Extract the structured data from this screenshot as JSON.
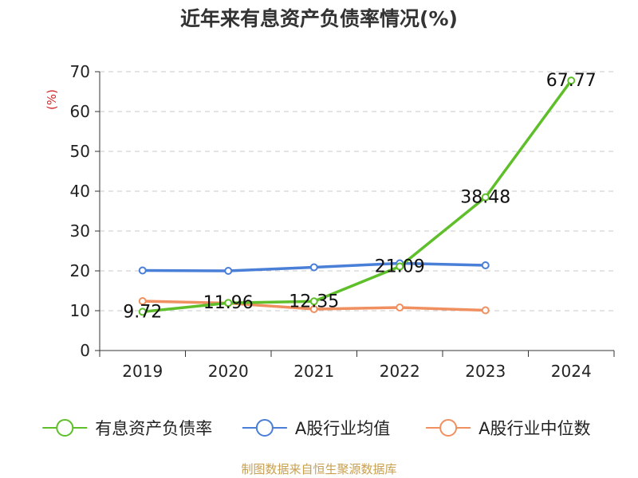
{
  "chart_data": {
    "type": "line",
    "title": "近年来有息资产负债率情况(%)",
    "ylabel": "(%)",
    "xlabel": "",
    "categories": [
      "2019",
      "2020",
      "2021",
      "2022",
      "2023",
      "2024"
    ],
    "ylim": [
      0,
      70
    ],
    "yticks": [
      0,
      10,
      20,
      30,
      40,
      50,
      60,
      70
    ],
    "grid": true,
    "legend_position": "bottom",
    "series": [
      {
        "name": "有息资产负债率",
        "color": "#5fbf2a",
        "values": [
          9.72,
          11.96,
          12.35,
          21.09,
          38.48,
          67.77
        ],
        "data_labels": [
          "9.72",
          "11.96",
          "12.35",
          "21.09",
          "38.48",
          "67.77"
        ]
      },
      {
        "name": "A股行业均值",
        "color": "#4a7fd8",
        "values": [
          20.1,
          20.0,
          20.9,
          21.9,
          21.4,
          null
        ]
      },
      {
        "name": "A股行业中位数",
        "color": "#f09060",
        "values": [
          12.4,
          11.9,
          10.4,
          10.8,
          10.1,
          null
        ]
      }
    ]
  },
  "source": "制图数据来自恒生聚源数据库"
}
